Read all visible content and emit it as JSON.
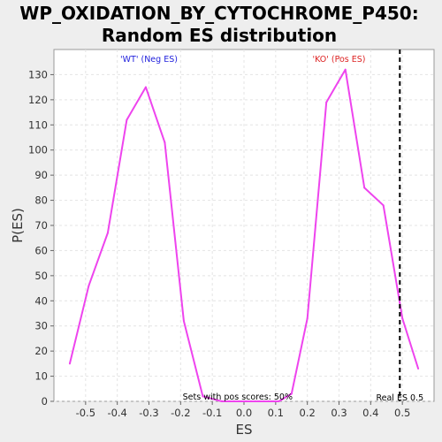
{
  "chart_data": {
    "type": "line",
    "title": "WP_OXIDATION_BY_CYTOCHROME_P450:",
    "subtitle": "Random ES distribution",
    "xlabel": "ES",
    "ylabel": "P(ES)",
    "xlim": [
      -0.6,
      0.6
    ],
    "ylim": [
      0,
      140
    ],
    "x_ticks": [
      -0.5,
      -0.4,
      -0.3,
      -0.2,
      -0.1,
      0.0,
      0.1,
      0.2,
      0.3,
      0.4,
      0.5
    ],
    "x_tick_labels": [
      "-0.5",
      "-0.4",
      "-0.3",
      "-0.2",
      "-0.1",
      "0.0",
      "0.1",
      "0.2",
      "0.3",
      "0.4",
      "0.5"
    ],
    "y_ticks": [
      0,
      10,
      20,
      30,
      40,
      50,
      60,
      70,
      80,
      90,
      100,
      110,
      120,
      130
    ],
    "y_tick_labels": [
      "0",
      "10",
      "20",
      "30",
      "40",
      "50",
      "60",
      "70",
      "80",
      "90",
      "100",
      "110",
      "120",
      "130"
    ],
    "grid": true,
    "series": [
      {
        "color": "#ee44ee",
        "points": [
          [
            -0.55,
            15
          ],
          [
            -0.49,
            46
          ],
          [
            -0.43,
            67
          ],
          [
            -0.37,
            112
          ],
          [
            -0.31,
            125
          ],
          [
            -0.25,
            103
          ],
          [
            -0.19,
            32
          ],
          [
            -0.13,
            2
          ],
          [
            -0.07,
            0
          ],
          [
            -0.01,
            0
          ],
          [
            0.05,
            0
          ],
          [
            0.11,
            0
          ],
          [
            0.15,
            3
          ],
          [
            0.2,
            33
          ],
          [
            0.26,
            119
          ],
          [
            0.32,
            132
          ],
          [
            0.38,
            85
          ],
          [
            0.44,
            78
          ],
          [
            0.5,
            33
          ],
          [
            0.55,
            13
          ]
        ]
      }
    ],
    "real_es": {
      "value": 0.492,
      "label": "Real ES 0.5",
      "color": "#000000"
    },
    "annotations": {
      "wt": {
        "text": "'WT' (Neg ES)",
        "color": "#2222dd",
        "x": -0.3
      },
      "ko": {
        "text": "'KO' (Pos ES)",
        "color": "#dd2222",
        "x": 0.3
      },
      "pos_scores": {
        "text": "Sets with pos scores: 50%",
        "color": "#000000",
        "x": -0.02
      }
    },
    "colors": {
      "background": "#eeeeee",
      "plot_background": "#ffffff",
      "grid": "#e4e4e4"
    }
  }
}
